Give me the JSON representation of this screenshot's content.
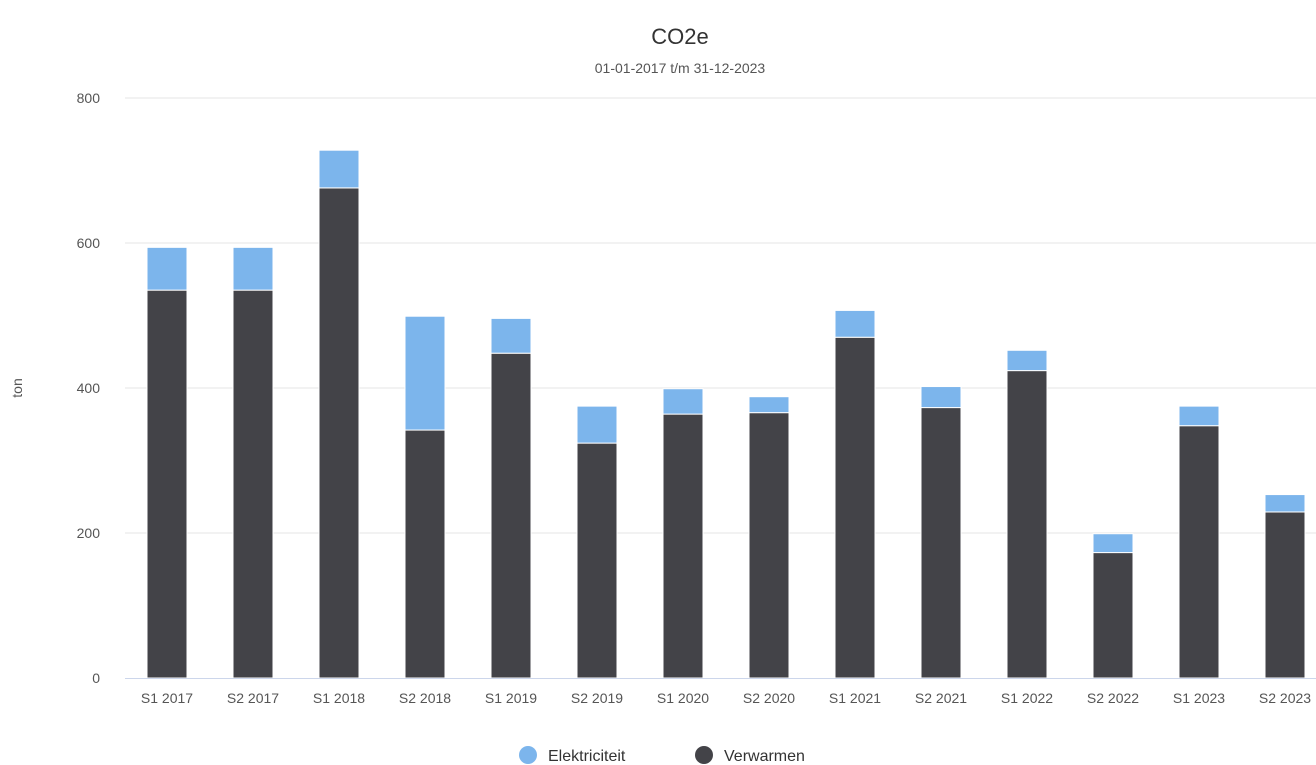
{
  "chart_data": {
    "type": "bar",
    "stacked": true,
    "title": "CO2e",
    "subtitle": "01-01-2017 t/m 31-12-2023",
    "xlabel": "",
    "ylabel": "ton",
    "ylim": [
      0,
      800
    ],
    "yticks": [
      0,
      200,
      400,
      600,
      800
    ],
    "grid": true,
    "legend_position": "bottom-center",
    "categories": [
      "S1 2017",
      "S2 2017",
      "S1 2018",
      "S2 2018",
      "S1 2019",
      "S2 2019",
      "S1 2020",
      "S2 2020",
      "S1 2021",
      "S2 2021",
      "S1 2022",
      "S2 2022",
      "S1 2023",
      "S2 2023"
    ],
    "series": [
      {
        "name": "Verwarmen",
        "color": "#434348",
        "values": [
          535,
          535,
          676,
          342,
          448,
          324,
          364,
          366,
          470,
          373,
          424,
          173,
          348,
          229
        ]
      },
      {
        "name": "Elektriciteit",
        "color": "#7cb5ec",
        "values": [
          59,
          59,
          52,
          157,
          48,
          51,
          35,
          22,
          37,
          29,
          28,
          26,
          27,
          24
        ]
      }
    ],
    "legend": [
      {
        "name": "Elektriciteit",
        "color": "#7cb5ec"
      },
      {
        "name": "Verwarmen",
        "color": "#434348"
      }
    ]
  }
}
